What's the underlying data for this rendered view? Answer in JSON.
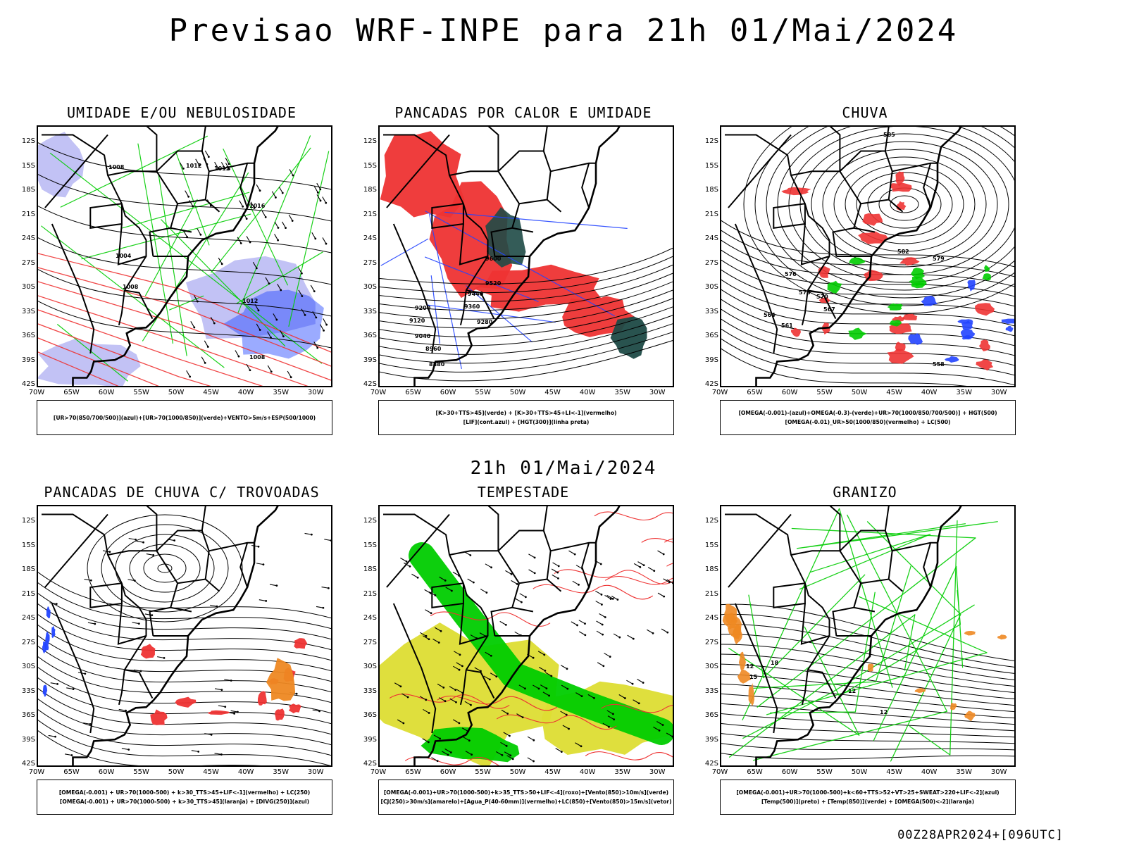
{
  "title": "Previsao WRF-INPE  para 21h 01/Mai/2024",
  "mid_date": "21h 01/Mai/2024",
  "footer": "00Z28APR2024+[096UTC]",
  "latitude_labels": [
    "12S",
    "15S",
    "18S",
    "21S",
    "24S",
    "27S",
    "30S",
    "33S",
    "36S",
    "39S",
    "42S"
  ],
  "longitude_labels": [
    "70W",
    "65W",
    "60W",
    "55W",
    "50W",
    "45W",
    "40W",
    "35W",
    "30W"
  ],
  "colors": {
    "green": "#00cc00",
    "red": "#ee3333",
    "blue": "#2244ff",
    "lavender": "#9999ee",
    "darkteal": "#1e4a46",
    "yellow": "#dddd33",
    "orange": "#ee8822",
    "purple": "#9922aa",
    "contour": "#000000"
  },
  "panels": [
    {
      "title": "UMIDADE E/OU NEBULOSIDADE",
      "legend": [
        "[UR>70(850/700/500)](azul)+[UR>70(1000/850)](verde)+VENTO>5m/s+ESP(500/1000)"
      ],
      "contour_labels": [
        "1008",
        "1012",
        "1012",
        "1004",
        "1008",
        "1012",
        "1016",
        "1008"
      ]
    },
    {
      "title": "PANCADAS POR CALOR E UMIDADE",
      "legend": [
        "[K>30+TTS>45](verde) + [K>30+TTS>45+LI<-1](vermelho)",
        "[LIF](cont.azul) + [HGT(300)](linha preta)"
      ],
      "contour_labels": [
        "9600",
        "9520",
        "9440",
        "9360",
        "9280",
        "9200",
        "9120",
        "9040",
        "8960",
        "8880"
      ]
    },
    {
      "title": "CHUVA",
      "legend": [
        "[OMEGA(-0.001)-(azul)+OMEGA(-0.3)-(verde)+UR>70(1000/850/700/500)] + HGT(500)",
        "[OMEGA(-0.01)_UR>50(1000/850)(vermelho) + LC(500)"
      ],
      "contour_labels": [
        "585",
        "582",
        "579",
        "576",
        "573",
        "570",
        "567",
        "564",
        "561",
        "558"
      ]
    },
    {
      "title": "PANCADAS DE CHUVA C/ TROVOADAS",
      "legend": [
        "[OMEGA(-0.001) + UR>70(1000-500) + k>30_TTS>45+LIF<-1](vermelho) + LC(250)",
        "[OMEGA(-0.001) + UR>70(1000-500) + k>30_TTS>45](laranja) + [DIVG(250)](azul)"
      ],
      "contour_labels": []
    },
    {
      "title": "TEMPESTADE",
      "legend": [
        "[OMEGA(-0.001)+UR>70(1000-500)+k>35_TTS>50+LIF<-4](roxo)+[Vento(850)>10m/s](verde)",
        "[CJ(250)>30m/s](amarelo)+[Agua_P(40-60mm)](vermelho)+LC(850)+[Vento(850)>15m/s](vetor)"
      ],
      "contour_labels": []
    },
    {
      "title": "GRANIZO",
      "legend": [
        "[OMEGA(-0.001)+UR>70(1000-500)+k<60+TTS>52+VT>25+SWEAT>220+LIF<-2](azul)",
        "[Temp(500)](preto) + [Temp(850)](verde) + [OMEGA(500)<-2](laranja)"
      ],
      "contour_labels": [
        "12",
        "15",
        "18",
        "12",
        "12"
      ]
    }
  ]
}
